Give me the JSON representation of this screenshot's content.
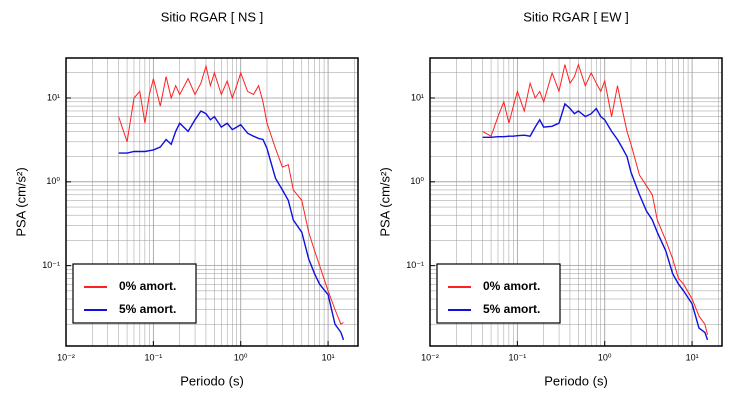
{
  "chart_data": [
    {
      "type": "line",
      "title": "Sitio RGAR [ NS ]",
      "xlabel": "Periodo (s)",
      "ylabel": "PSA (cm/s²)",
      "xscale": "log",
      "yscale": "log",
      "grid": true,
      "legend": "lower left",
      "xlim": [
        0.01,
        22
      ],
      "ylim": [
        0.011,
        30
      ],
      "xticks": [
        {
          "value": 0.01,
          "label": "10⁻²"
        },
        {
          "value": 0.1,
          "label": "10⁻¹"
        },
        {
          "value": 1,
          "label": "10⁰"
        },
        {
          "value": 10,
          "label": "10¹"
        }
      ],
      "yticks": [
        {
          "value": 0.1,
          "label": "10⁻¹"
        },
        {
          "value": 1,
          "label": "10⁰"
        },
        {
          "value": 10,
          "label": "10¹"
        }
      ],
      "x": [
        0.04,
        0.05,
        0.06,
        0.07,
        0.08,
        0.09,
        0.1,
        0.12,
        0.14,
        0.16,
        0.18,
        0.2,
        0.25,
        0.3,
        0.35,
        0.4,
        0.45,
        0.5,
        0.6,
        0.7,
        0.8,
        0.9,
        1.0,
        1.2,
        1.4,
        1.6,
        1.8,
        2.0,
        2.5,
        3,
        3.5,
        4,
        5,
        6,
        7,
        8,
        10,
        12,
        14,
        15
      ],
      "series": [
        {
          "name": "0% amort.",
          "color": "#ff2020",
          "values": [
            6,
            3,
            10,
            12,
            5,
            11,
            17,
            8,
            18,
            10,
            14,
            11,
            17,
            11,
            15,
            24,
            14,
            20,
            11,
            16,
            10,
            14,
            20,
            12,
            11,
            14,
            9,
            5,
            2.5,
            1.5,
            1.6,
            0.8,
            0.6,
            0.25,
            0.15,
            0.1,
            0.05,
            0.03,
            0.02,
            0.021
          ]
        },
        {
          "name": "5% amort.",
          "color": "#1010e0",
          "values": [
            2.2,
            2.2,
            2.3,
            2.3,
            2.3,
            2.35,
            2.4,
            2.6,
            3.2,
            2.8,
            4,
            5,
            4,
            5.5,
            7,
            6.5,
            5.5,
            6,
            4.5,
            5,
            4.2,
            4.5,
            4.8,
            3.8,
            3.5,
            3.3,
            3.2,
            2.5,
            1.1,
            0.8,
            0.6,
            0.35,
            0.25,
            0.12,
            0.08,
            0.06,
            0.045,
            0.02,
            0.016,
            0.013
          ]
        }
      ]
    },
    {
      "type": "line",
      "title": "Sitio RGAR [ EW ]",
      "xlabel": "Periodo (s)",
      "ylabel": "PSA (cm/s²)",
      "xscale": "log",
      "yscale": "log",
      "grid": true,
      "legend": "lower left",
      "xlim": [
        0.01,
        22
      ],
      "ylim": [
        0.011,
        30
      ],
      "xticks": [
        {
          "value": 0.01,
          "label": "10⁻²"
        },
        {
          "value": 0.1,
          "label": "10⁻¹"
        },
        {
          "value": 1,
          "label": "10⁰"
        },
        {
          "value": 10,
          "label": "10¹"
        }
      ],
      "yticks": [
        {
          "value": 0.1,
          "label": "10⁻¹"
        },
        {
          "value": 1,
          "label": "10⁰"
        },
        {
          "value": 10,
          "label": "10¹"
        }
      ],
      "x": [
        0.04,
        0.05,
        0.06,
        0.07,
        0.08,
        0.09,
        0.1,
        0.12,
        0.14,
        0.16,
        0.18,
        0.2,
        0.25,
        0.3,
        0.35,
        0.4,
        0.45,
        0.5,
        0.6,
        0.7,
        0.8,
        0.9,
        1.0,
        1.2,
        1.4,
        1.6,
        1.8,
        2.0,
        2.5,
        3,
        3.5,
        4,
        5,
        6,
        7,
        8,
        10,
        12,
        14,
        15
      ],
      "series": [
        {
          "name": "0% amort.",
          "color": "#ff2020",
          "values": [
            4,
            3.5,
            6,
            9,
            5,
            8,
            12,
            7,
            15,
            10,
            12,
            9,
            20,
            12,
            25,
            15,
            18,
            25,
            14,
            20,
            15,
            12,
            16,
            6,
            14,
            7,
            4,
            2.8,
            1.2,
            0.9,
            0.7,
            0.35,
            0.2,
            0.12,
            0.07,
            0.06,
            0.04,
            0.025,
            0.02,
            0.015
          ]
        },
        {
          "name": "5% amort.",
          "color": "#1010e0",
          "values": [
            3.4,
            3.4,
            3.45,
            3.45,
            3.5,
            3.5,
            3.55,
            3.6,
            3.5,
            4.5,
            5.5,
            4.5,
            4.6,
            5,
            8.5,
            7.5,
            6.5,
            7,
            6,
            6.5,
            7.5,
            6,
            5.5,
            4,
            3.2,
            2.5,
            2,
            1.3,
            0.7,
            0.45,
            0.35,
            0.25,
            0.15,
            0.08,
            0.06,
            0.05,
            0.035,
            0.018,
            0.016,
            0.013
          ]
        }
      ]
    }
  ]
}
